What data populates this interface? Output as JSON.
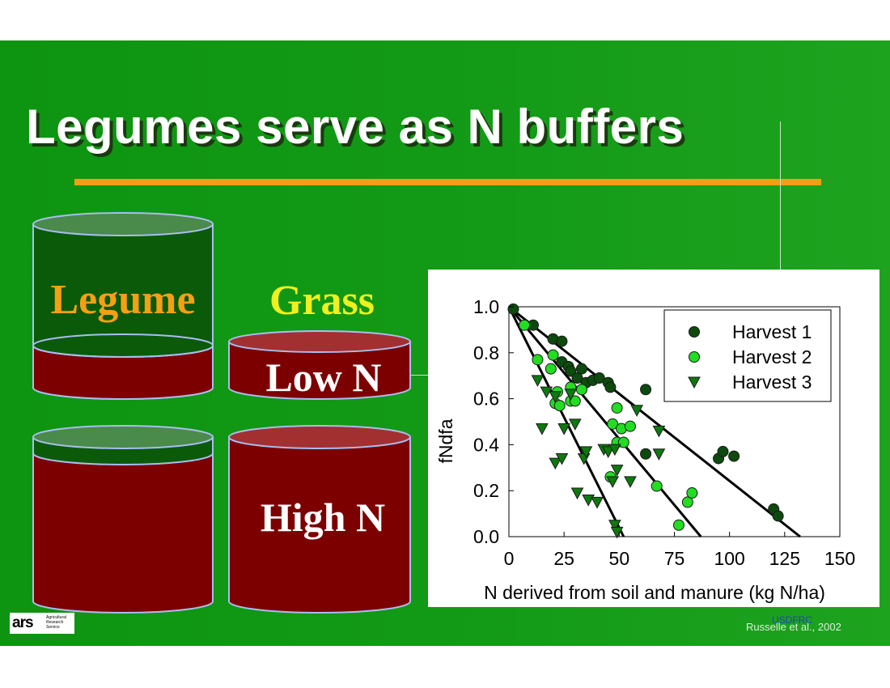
{
  "slide": {
    "title": "Legumes serve as N buffers",
    "citation": "Russelle et al., 2002",
    "watermark": "USDFRC",
    "logo": {
      "mark": "ars",
      "text": [
        "Agricultural",
        "Research",
        "Service"
      ]
    },
    "colors": {
      "background": "#139a16",
      "rule": "#f0a010",
      "legume": "#0a5a0a",
      "soil_n": "#7c0000"
    }
  },
  "diagram": {
    "legume_label": "Legume",
    "grass_label": "Grass",
    "low_n_label": "Low N",
    "high_n_label": "High N"
  },
  "chart_data": {
    "type": "scatter",
    "xlabel": "N derived from soil and manure (kg N/ha)",
    "ylabel": "fNdfa",
    "xlim": [
      0,
      150
    ],
    "ylim": [
      0,
      1.0
    ],
    "x_ticks": [
      0,
      25,
      50,
      75,
      100,
      125,
      150
    ],
    "x_tick_labels": [
      "0",
      "25",
      "50",
      "75",
      "100",
      "125",
      "150"
    ],
    "y_ticks": [
      0,
      0.2,
      0.4,
      0.6,
      0.8,
      1.0
    ],
    "y_tick_labels": [
      "0.0",
      "0.2",
      "0.4",
      "0.6",
      "0.8",
      "1.0"
    ],
    "legend_position": "top-right",
    "series": [
      {
        "name": "Harvest 1",
        "marker": "circle",
        "color": "#0d4a0d",
        "points": [
          [
            2,
            0.99
          ],
          [
            11,
            0.92
          ],
          [
            20,
            0.86
          ],
          [
            24,
            0.85
          ],
          [
            24,
            0.76
          ],
          [
            27,
            0.74
          ],
          [
            28,
            0.72
          ],
          [
            31,
            0.69
          ],
          [
            33,
            0.73
          ],
          [
            35,
            0.67
          ],
          [
            38,
            0.68
          ],
          [
            41,
            0.69
          ],
          [
            45,
            0.67
          ],
          [
            46,
            0.65
          ],
          [
            62,
            0.64
          ],
          [
            62,
            0.36
          ],
          [
            95,
            0.34
          ],
          [
            97,
            0.37
          ],
          [
            102,
            0.35
          ],
          [
            120,
            0.12
          ],
          [
            122,
            0.09
          ]
        ],
        "fit": [
          [
            0,
            1.0
          ],
          [
            132,
            0
          ]
        ]
      },
      {
        "name": "Harvest 2",
        "marker": "circle",
        "color": "#22dd22",
        "points": [
          [
            7,
            0.92
          ],
          [
            13,
            0.77
          ],
          [
            20,
            0.79
          ],
          [
            19,
            0.73
          ],
          [
            21,
            0.58
          ],
          [
            22,
            0.63
          ],
          [
            23,
            0.57
          ],
          [
            28,
            0.65
          ],
          [
            28,
            0.59
          ],
          [
            30,
            0.59
          ],
          [
            33,
            0.64
          ],
          [
            47,
            0.49
          ],
          [
            49,
            0.56
          ],
          [
            49,
            0.41
          ],
          [
            52,
            0.41
          ],
          [
            51,
            0.47
          ],
          [
            55,
            0.48
          ],
          [
            46,
            0.26
          ],
          [
            67,
            0.22
          ],
          [
            77,
            0.05
          ],
          [
            81,
            0.15
          ],
          [
            83,
            0.19
          ]
        ],
        "fit": [
          [
            0,
            1.0
          ],
          [
            87,
            0
          ]
        ]
      },
      {
        "name": "Harvest 3",
        "marker": "triangle-down",
        "color": "#0d7a0d",
        "points": [
          [
            13,
            0.68
          ],
          [
            15,
            0.47
          ],
          [
            17,
            0.63
          ],
          [
            21,
            0.61
          ],
          [
            21,
            0.32
          ],
          [
            24,
            0.34
          ],
          [
            25,
            0.47
          ],
          [
            28,
            0.62
          ],
          [
            30,
            0.49
          ],
          [
            31,
            0.19
          ],
          [
            34,
            0.34
          ],
          [
            35,
            0.37
          ],
          [
            36,
            0.16
          ],
          [
            40,
            0.15
          ],
          [
            43,
            0.38
          ],
          [
            45,
            0.37
          ],
          [
            47,
            0.24
          ],
          [
            48,
            0.05
          ],
          [
            48,
            0.38
          ],
          [
            49,
            0.29
          ],
          [
            49,
            0.02
          ],
          [
            55,
            0.24
          ],
          [
            58,
            0.55
          ],
          [
            68,
            0.46
          ],
          [
            68,
            0.36
          ]
        ],
        "fit": [
          [
            0,
            1.0
          ],
          [
            52,
            0
          ]
        ]
      }
    ]
  }
}
